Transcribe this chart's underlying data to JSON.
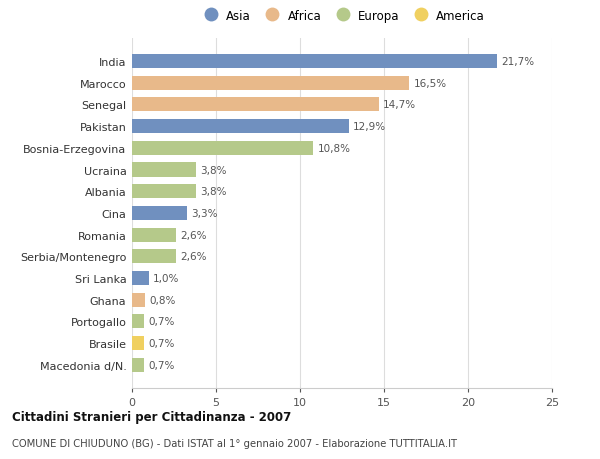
{
  "countries": [
    "India",
    "Marocco",
    "Senegal",
    "Pakistan",
    "Bosnia-Erzegovina",
    "Ucraina",
    "Albania",
    "Cina",
    "Romania",
    "Serbia/Montenegro",
    "Sri Lanka",
    "Ghana",
    "Portogallo",
    "Brasile",
    "Macedonia d/N."
  ],
  "values": [
    21.7,
    16.5,
    14.7,
    12.9,
    10.8,
    3.8,
    3.8,
    3.3,
    2.6,
    2.6,
    1.0,
    0.8,
    0.7,
    0.7,
    0.7
  ],
  "labels": [
    "21,7%",
    "16,5%",
    "14,7%",
    "12,9%",
    "10,8%",
    "3,8%",
    "3,8%",
    "3,3%",
    "2,6%",
    "2,6%",
    "1,0%",
    "0,8%",
    "0,7%",
    "0,7%",
    "0,7%"
  ],
  "continents": [
    "Asia",
    "Africa",
    "Africa",
    "Asia",
    "Europa",
    "Europa",
    "Europa",
    "Asia",
    "Europa",
    "Europa",
    "Asia",
    "Africa",
    "Europa",
    "America",
    "Europa"
  ],
  "continent_colors": {
    "Asia": "#7090bf",
    "Africa": "#e8b98a",
    "Europa": "#b5c98a",
    "America": "#f0d060"
  },
  "legend_order": [
    "Asia",
    "Africa",
    "Europa",
    "America"
  ],
  "title_bold": "Cittadini Stranieri per Cittadinanza - 2007",
  "subtitle": "COMUNE DI CHIUDUNO (BG) - Dati ISTAT al 1° gennaio 2007 - Elaborazione TUTTITALIA.IT",
  "xlim": [
    0,
    25
  ],
  "xticks": [
    0,
    5,
    10,
    15,
    20,
    25
  ],
  "background_color": "#ffffff",
  "grid_color": "#dddddd"
}
